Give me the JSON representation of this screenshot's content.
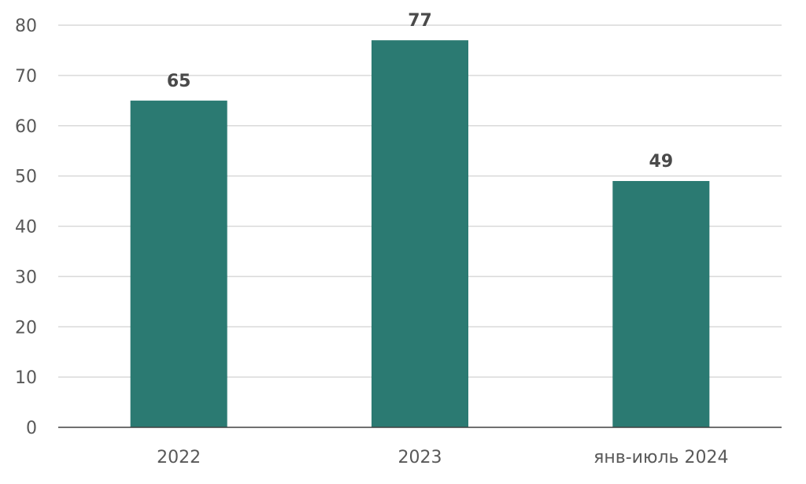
{
  "colors": {
    "bar": "#2b7a72",
    "grid": "#d9d9d9",
    "axis": "#404040",
    "text": "#595959",
    "data_label": "#4a4a4a"
  },
  "chart_data": {
    "type": "bar",
    "categories": [
      "2022",
      "2023",
      "янв-июль 2024"
    ],
    "values": [
      65,
      77,
      49
    ],
    "data_labels": [
      "65",
      "77",
      "49"
    ],
    "ylim": [
      0,
      80
    ],
    "yticks": [
      0,
      10,
      20,
      30,
      40,
      50,
      60,
      70,
      80
    ],
    "ytick_labels": [
      "0",
      "10",
      "20",
      "30",
      "40",
      "50",
      "60",
      "70",
      "80"
    ],
    "grid": true,
    "legend": "none",
    "title": "",
    "xlabel": "",
    "ylabel": ""
  }
}
